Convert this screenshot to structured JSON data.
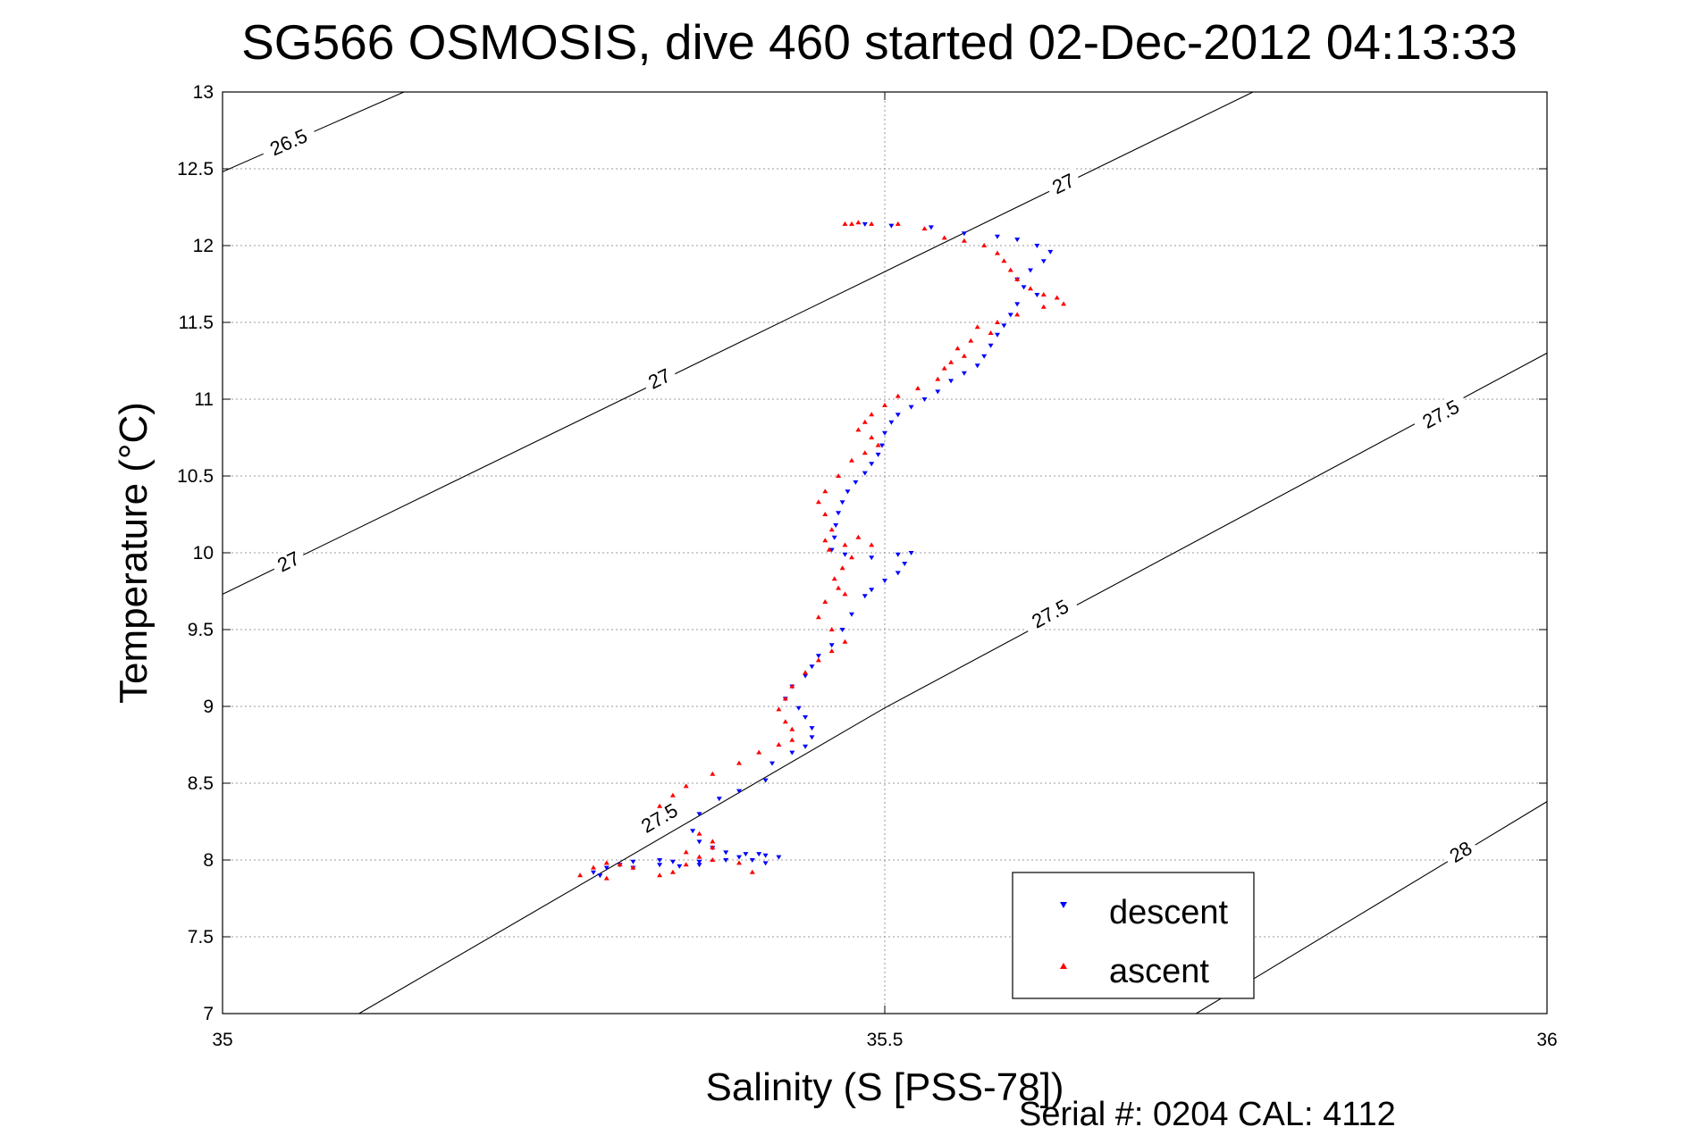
{
  "chart_data": {
    "type": "scatter",
    "title": "SG566 OSMOSIS, dive 460 started 02-Dec-2012 04:13:33",
    "xlabel": "Salinity (S [PSS-78])",
    "ylabel": "Temperature (°C)",
    "xlim": [
      35,
      36
    ],
    "ylim": [
      7,
      13
    ],
    "xticks": [
      35,
      35.5,
      36
    ],
    "xtick_labels": [
      "35",
      "35.5",
      "36"
    ],
    "yticks": [
      7,
      7.5,
      8,
      8.5,
      9,
      9.5,
      10,
      10.5,
      11,
      11.5,
      12,
      12.5,
      13
    ],
    "ytick_labels": [
      "7",
      "7.5",
      "8",
      "8.5",
      "9",
      "9.5",
      "10",
      "10.5",
      "11",
      "11.5",
      "12",
      "12.5",
      "13"
    ],
    "grid": true,
    "grid_style": "dotted",
    "legend_position": "bottom-right",
    "footer": "Serial #: 0204  CAL: 4112",
    "colors": {
      "descent": "#0000ff",
      "ascent": "#ff0000",
      "contour": "#000000",
      "grid": "#9a9a9a"
    },
    "density_contours": [
      {
        "level": "26.5",
        "points": [
          [
            35.0,
            12.48
          ],
          [
            35.137,
            13.0
          ]
        ],
        "labels": [
          {
            "text": "26.5",
            "s": 35.05,
            "t": 12.67
          }
        ]
      },
      {
        "level": "27",
        "points": [
          [
            35.0,
            9.73
          ],
          [
            35.5,
            11.83
          ],
          [
            35.778,
            13.0
          ]
        ],
        "labels": [
          {
            "text": "27",
            "s": 35.05,
            "t": 9.94
          },
          {
            "text": "27",
            "s": 35.33,
            "t": 11.13
          },
          {
            "text": "27",
            "s": 35.635,
            "t": 12.4
          }
        ]
      },
      {
        "level": "27.5",
        "points": [
          [
            35.103,
            7.0
          ],
          [
            35.5,
            8.99
          ],
          [
            36.0,
            11.3
          ]
        ],
        "labels": [
          {
            "text": "27.5",
            "s": 35.33,
            "t": 8.27
          },
          {
            "text": "27.5",
            "s": 35.625,
            "t": 9.6
          },
          {
            "text": "27.5",
            "s": 35.92,
            "t": 10.9
          }
        ]
      },
      {
        "level": "28",
        "points": [
          [
            35.735,
            7.0
          ],
          [
            36.0,
            8.38
          ]
        ],
        "labels": [
          {
            "text": "28",
            "s": 35.935,
            "t": 8.05
          }
        ]
      }
    ],
    "series": [
      {
        "name": "descent",
        "marker": "triangle-down",
        "points": [
          [
            35.485,
            12.14
          ],
          [
            35.505,
            12.13
          ],
          [
            35.535,
            12.12
          ],
          [
            35.56,
            12.08
          ],
          [
            35.585,
            12.06
          ],
          [
            35.6,
            12.04
          ],
          [
            35.615,
            12.0
          ],
          [
            35.625,
            11.96
          ],
          [
            35.62,
            11.9
          ],
          [
            35.61,
            11.84
          ],
          [
            35.6,
            11.78
          ],
          [
            35.605,
            11.73
          ],
          [
            35.615,
            11.68
          ],
          [
            35.6,
            11.62
          ],
          [
            35.595,
            11.55
          ],
          [
            35.59,
            11.48
          ],
          [
            35.585,
            11.42
          ],
          [
            35.58,
            11.35
          ],
          [
            35.575,
            11.28
          ],
          [
            35.57,
            11.22
          ],
          [
            35.56,
            11.17
          ],
          [
            35.55,
            11.12
          ],
          [
            35.54,
            11.05
          ],
          [
            35.53,
            11.0
          ],
          [
            35.52,
            10.95
          ],
          [
            35.51,
            10.9
          ],
          [
            35.505,
            10.85
          ],
          [
            35.5,
            10.78
          ],
          [
            35.498,
            10.7
          ],
          [
            35.495,
            10.64
          ],
          [
            35.49,
            10.58
          ],
          [
            35.485,
            10.52
          ],
          [
            35.478,
            10.46
          ],
          [
            35.472,
            10.4
          ],
          [
            35.468,
            10.33
          ],
          [
            35.465,
            10.26
          ],
          [
            35.463,
            10.18
          ],
          [
            35.462,
            10.1
          ],
          [
            35.46,
            10.02
          ],
          [
            35.47,
            9.99
          ],
          [
            35.49,
            9.97
          ],
          [
            35.51,
            9.99
          ],
          [
            35.52,
            10.0
          ],
          [
            35.515,
            9.93
          ],
          [
            35.51,
            9.87
          ],
          [
            35.5,
            9.82
          ],
          [
            35.49,
            9.76
          ],
          [
            35.485,
            9.72
          ],
          [
            35.475,
            9.6
          ],
          [
            35.468,
            9.5
          ],
          [
            35.46,
            9.4
          ],
          [
            35.45,
            9.33
          ],
          [
            35.445,
            9.26
          ],
          [
            35.44,
            9.2
          ],
          [
            35.43,
            9.13
          ],
          [
            35.425,
            9.05
          ],
          [
            35.435,
            8.99
          ],
          [
            35.44,
            8.93
          ],
          [
            35.445,
            8.86
          ],
          [
            35.445,
            8.8
          ],
          [
            35.44,
            8.74
          ],
          [
            35.43,
            8.7
          ],
          [
            35.415,
            8.63
          ],
          [
            35.41,
            8.52
          ],
          [
            35.39,
            8.45
          ],
          [
            35.375,
            8.4
          ],
          [
            35.36,
            8.3
          ],
          [
            35.355,
            8.19
          ],
          [
            35.36,
            8.12
          ],
          [
            35.37,
            8.08
          ],
          [
            35.38,
            8.05
          ],
          [
            35.395,
            8.04
          ],
          [
            35.41,
            8.03
          ],
          [
            35.42,
            8.02
          ],
          [
            35.4,
            8.0
          ],
          [
            35.38,
            8.0
          ],
          [
            35.36,
            7.99
          ],
          [
            35.34,
            7.99
          ],
          [
            35.33,
            8.0
          ],
          [
            35.31,
            7.99
          ],
          [
            35.3,
            7.97
          ],
          [
            35.29,
            7.95
          ],
          [
            35.28,
            7.92
          ],
          [
            35.285,
            7.9
          ],
          [
            35.31,
            7.95
          ],
          [
            35.33,
            7.97
          ],
          [
            35.345,
            7.96
          ],
          [
            35.36,
            7.97
          ],
          [
            35.39,
            8.02
          ],
          [
            35.405,
            8.04
          ],
          [
            35.41,
            7.98
          ]
        ]
      },
      {
        "name": "ascent",
        "marker": "triangle-up",
        "points": [
          [
            35.47,
            12.14
          ],
          [
            35.475,
            12.14
          ],
          [
            35.48,
            12.15
          ],
          [
            35.49,
            12.14
          ],
          [
            35.51,
            12.14
          ],
          [
            35.53,
            12.11
          ],
          [
            35.545,
            12.05
          ],
          [
            35.56,
            12.03
          ],
          [
            35.575,
            12.0
          ],
          [
            35.585,
            11.95
          ],
          [
            35.59,
            11.9
          ],
          [
            35.595,
            11.84
          ],
          [
            35.6,
            11.78
          ],
          [
            35.61,
            11.72
          ],
          [
            35.62,
            11.68
          ],
          [
            35.63,
            11.66
          ],
          [
            35.635,
            11.62
          ],
          [
            35.62,
            11.6
          ],
          [
            35.6,
            11.55
          ],
          [
            35.585,
            11.5
          ],
          [
            35.57,
            11.47
          ],
          [
            35.58,
            11.43
          ],
          [
            35.565,
            11.38
          ],
          [
            35.555,
            11.33
          ],
          [
            35.56,
            11.28
          ],
          [
            35.55,
            11.24
          ],
          [
            35.545,
            11.2
          ],
          [
            35.54,
            11.13
          ],
          [
            35.525,
            11.07
          ],
          [
            35.51,
            11.02
          ],
          [
            35.5,
            10.96
          ],
          [
            35.49,
            10.9
          ],
          [
            35.485,
            10.85
          ],
          [
            35.48,
            10.8
          ],
          [
            35.49,
            10.75
          ],
          [
            35.495,
            10.7
          ],
          [
            35.485,
            10.65
          ],
          [
            35.475,
            10.6
          ],
          [
            35.465,
            10.5
          ],
          [
            35.455,
            10.4
          ],
          [
            35.45,
            10.33
          ],
          [
            35.455,
            10.25
          ],
          [
            35.46,
            10.15
          ],
          [
            35.455,
            10.08
          ],
          [
            35.458,
            10.02
          ],
          [
            35.47,
            10.05
          ],
          [
            35.48,
            10.1
          ],
          [
            35.49,
            10.05
          ],
          [
            35.475,
            9.97
          ],
          [
            35.468,
            9.9
          ],
          [
            35.462,
            9.83
          ],
          [
            35.465,
            9.77
          ],
          [
            35.47,
            9.73
          ],
          [
            35.455,
            9.68
          ],
          [
            35.45,
            9.58
          ],
          [
            35.46,
            9.5
          ],
          [
            35.47,
            9.42
          ],
          [
            35.46,
            9.36
          ],
          [
            35.45,
            9.3
          ],
          [
            35.44,
            9.22
          ],
          [
            35.43,
            9.13
          ],
          [
            35.425,
            9.05
          ],
          [
            35.42,
            8.98
          ],
          [
            35.425,
            8.9
          ],
          [
            35.43,
            8.85
          ],
          [
            35.43,
            8.78
          ],
          [
            35.42,
            8.75
          ],
          [
            35.405,
            8.7
          ],
          [
            35.39,
            8.63
          ],
          [
            35.37,
            8.56
          ],
          [
            35.35,
            8.48
          ],
          [
            35.34,
            8.42
          ],
          [
            35.33,
            8.35
          ],
          [
            35.36,
            8.17
          ],
          [
            35.37,
            8.12
          ],
          [
            35.37,
            8.08
          ],
          [
            35.35,
            8.05
          ],
          [
            35.36,
            8.02
          ],
          [
            35.37,
            8.0
          ],
          [
            35.35,
            7.97
          ],
          [
            35.34,
            7.92
          ],
          [
            35.33,
            7.9
          ],
          [
            35.31,
            7.95
          ],
          [
            35.3,
            7.97
          ],
          [
            35.29,
            7.98
          ],
          [
            35.28,
            7.95
          ],
          [
            35.27,
            7.9
          ],
          [
            35.29,
            7.88
          ],
          [
            35.39,
            7.98
          ],
          [
            35.4,
            7.92
          ]
        ]
      }
    ]
  }
}
